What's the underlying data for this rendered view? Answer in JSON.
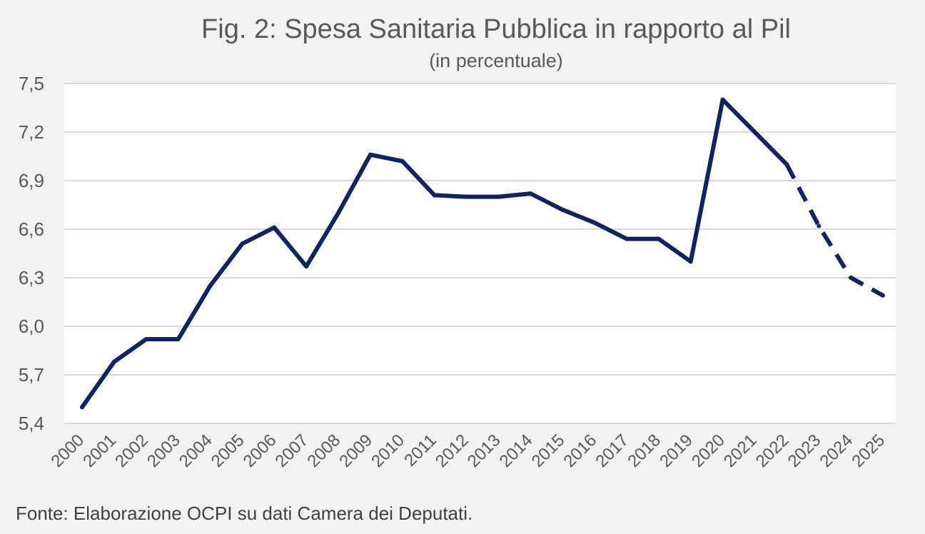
{
  "title": "Fig. 2: Spesa Sanitaria Pubblica in rapporto al Pil",
  "subtitle": "(in percentuale)",
  "source": "Fonte: Elaborazione OCPI su dati Camera dei Deputati.",
  "colors": {
    "background": "#f2f2f2",
    "plot_area": "#ffffff",
    "line": "#0f2460",
    "grid": "#d9d9d9",
    "text": "#595959"
  },
  "chart_data": {
    "type": "line",
    "title": "Fig. 2: Spesa Sanitaria Pubblica in rapporto al Pil",
    "subtitle": "(in percentuale)",
    "xlabel": "",
    "ylabel": "",
    "ylim": [
      5.4,
      7.5
    ],
    "yticks": [
      "5,4",
      "5,7",
      "6,0",
      "6,3",
      "6,6",
      "6,9",
      "7,2",
      "7,5"
    ],
    "ytick_values": [
      5.4,
      5.7,
      6.0,
      6.3,
      6.6,
      6.9,
      7.2,
      7.5
    ],
    "grid": true,
    "legend": "none",
    "categories": [
      "2000",
      "2001",
      "2002",
      "2003",
      "2004",
      "2005",
      "2006",
      "2007",
      "2008",
      "2009",
      "2010",
      "2011",
      "2012",
      "2013",
      "2014",
      "2015",
      "2016",
      "2017",
      "2018",
      "2019",
      "2020",
      "2021",
      "2022",
      "2023",
      "2024",
      "2025"
    ],
    "series": [
      {
        "values": [
          5.5,
          5.78,
          5.92,
          5.92,
          6.25,
          6.51,
          6.61,
          6.37,
          6.7,
          7.06,
          7.02,
          6.81,
          6.8,
          6.8,
          6.82,
          6.72,
          6.64,
          6.54,
          6.54,
          6.4,
          7.4,
          7.2,
          7.0,
          6.62,
          6.3,
          6.19
        ],
        "style_note": "solid 2000-2022, dashed 2022-2025 (projection)",
        "solid_until_index": 22
      }
    ]
  }
}
